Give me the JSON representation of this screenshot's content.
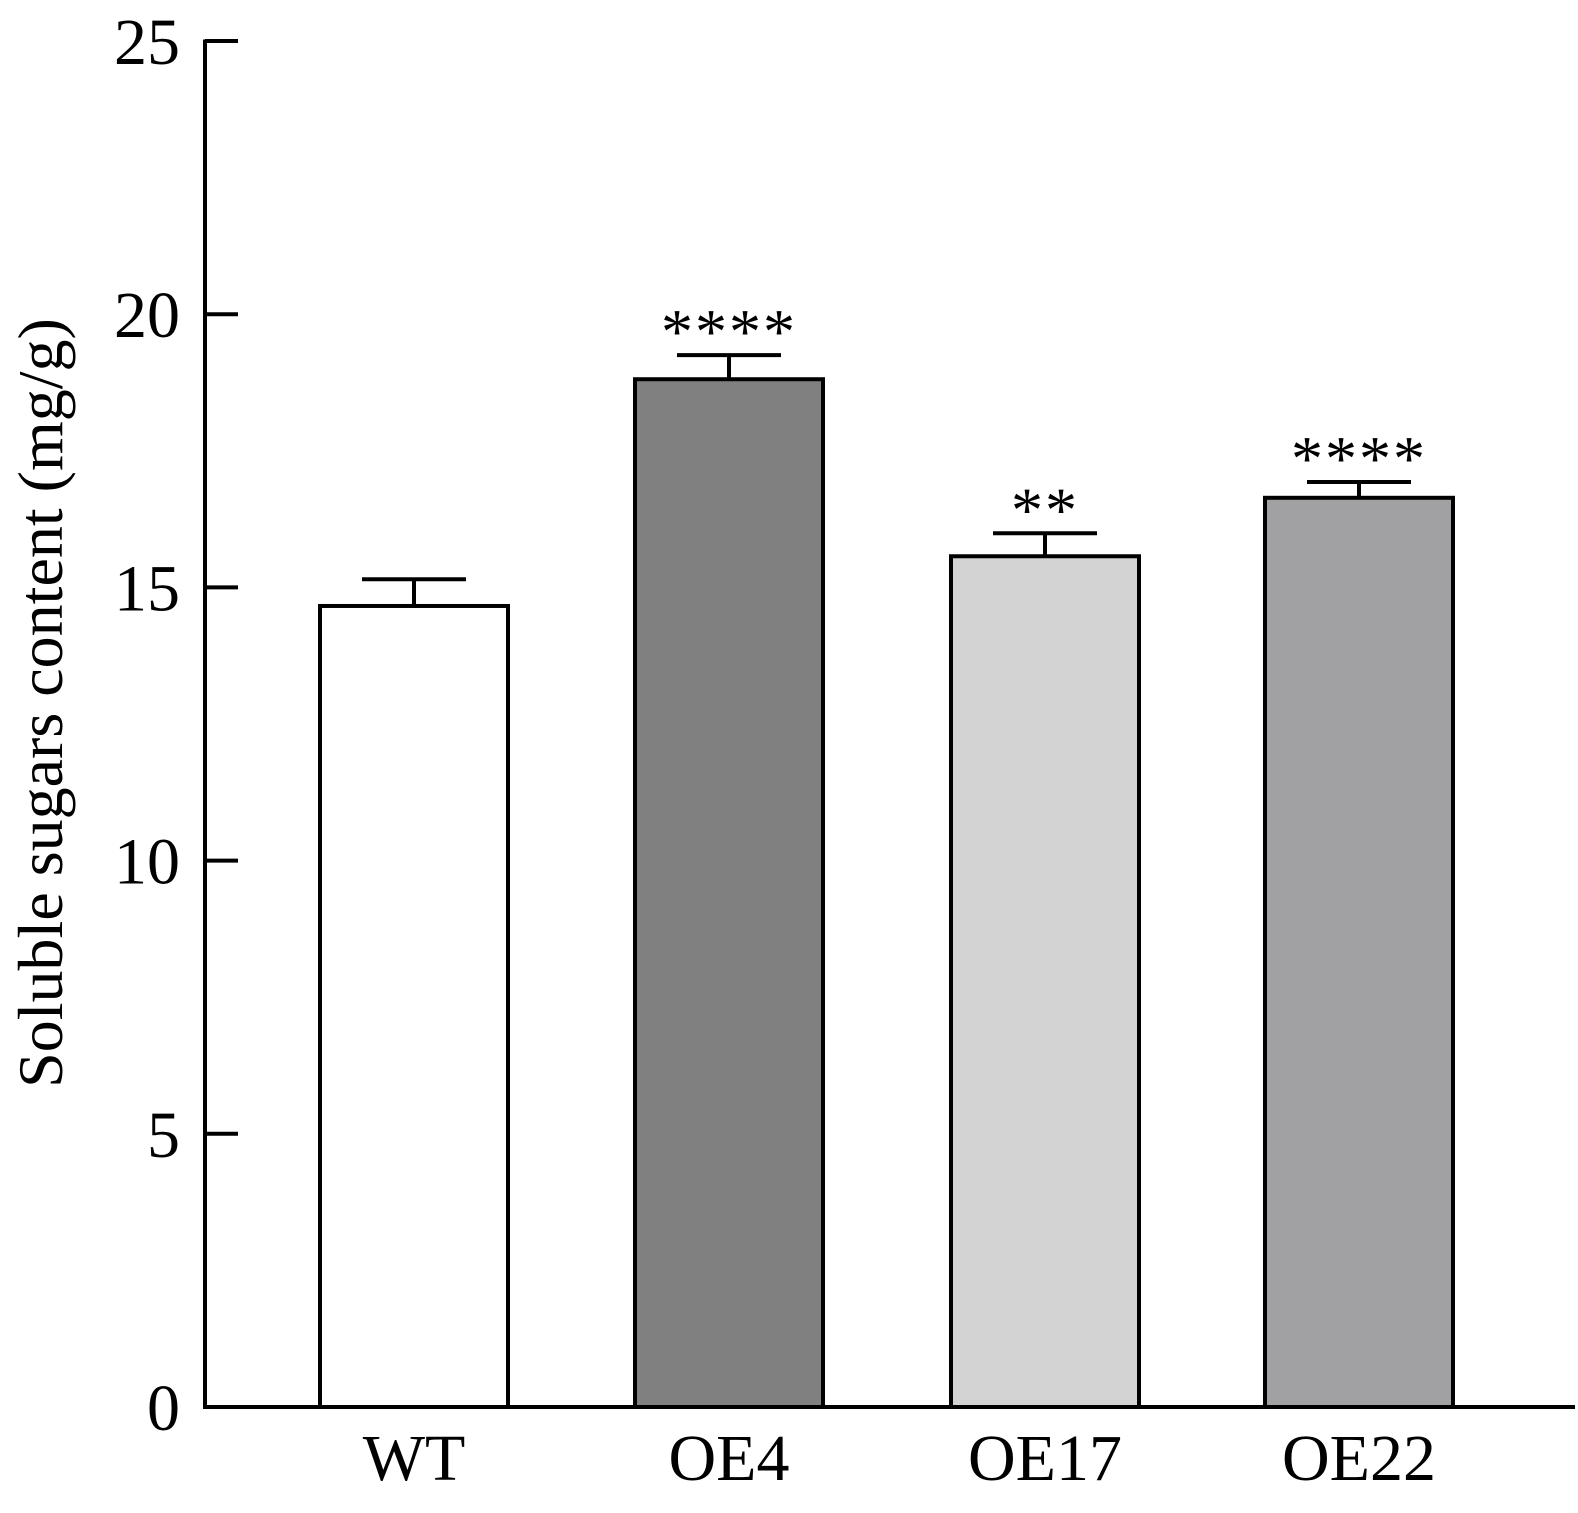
{
  "chart_data": {
    "type": "bar",
    "title": "",
    "xlabel": "",
    "ylabel": "Soluble sugars content (mg/g)",
    "ylim": [
      0,
      25
    ],
    "yticks": [
      0,
      5,
      10,
      15,
      20,
      25
    ],
    "ytick_labels": [
      "0",
      "5",
      "10",
      "15",
      "20",
      "25"
    ],
    "categories": [
      "WT",
      "OE4",
      "OE17",
      "OE22"
    ],
    "values": [
      14.66,
      18.81,
      15.57,
      16.64
    ],
    "errors": [
      0.49,
      0.44,
      0.42,
      0.29
    ],
    "significance": [
      "",
      "****",
      "**",
      "****"
    ],
    "colors": [
      "#ffffff",
      "#808080",
      "#d3d3d3",
      "#a1a1a4"
    ],
    "grid": false,
    "legend": "none"
  }
}
